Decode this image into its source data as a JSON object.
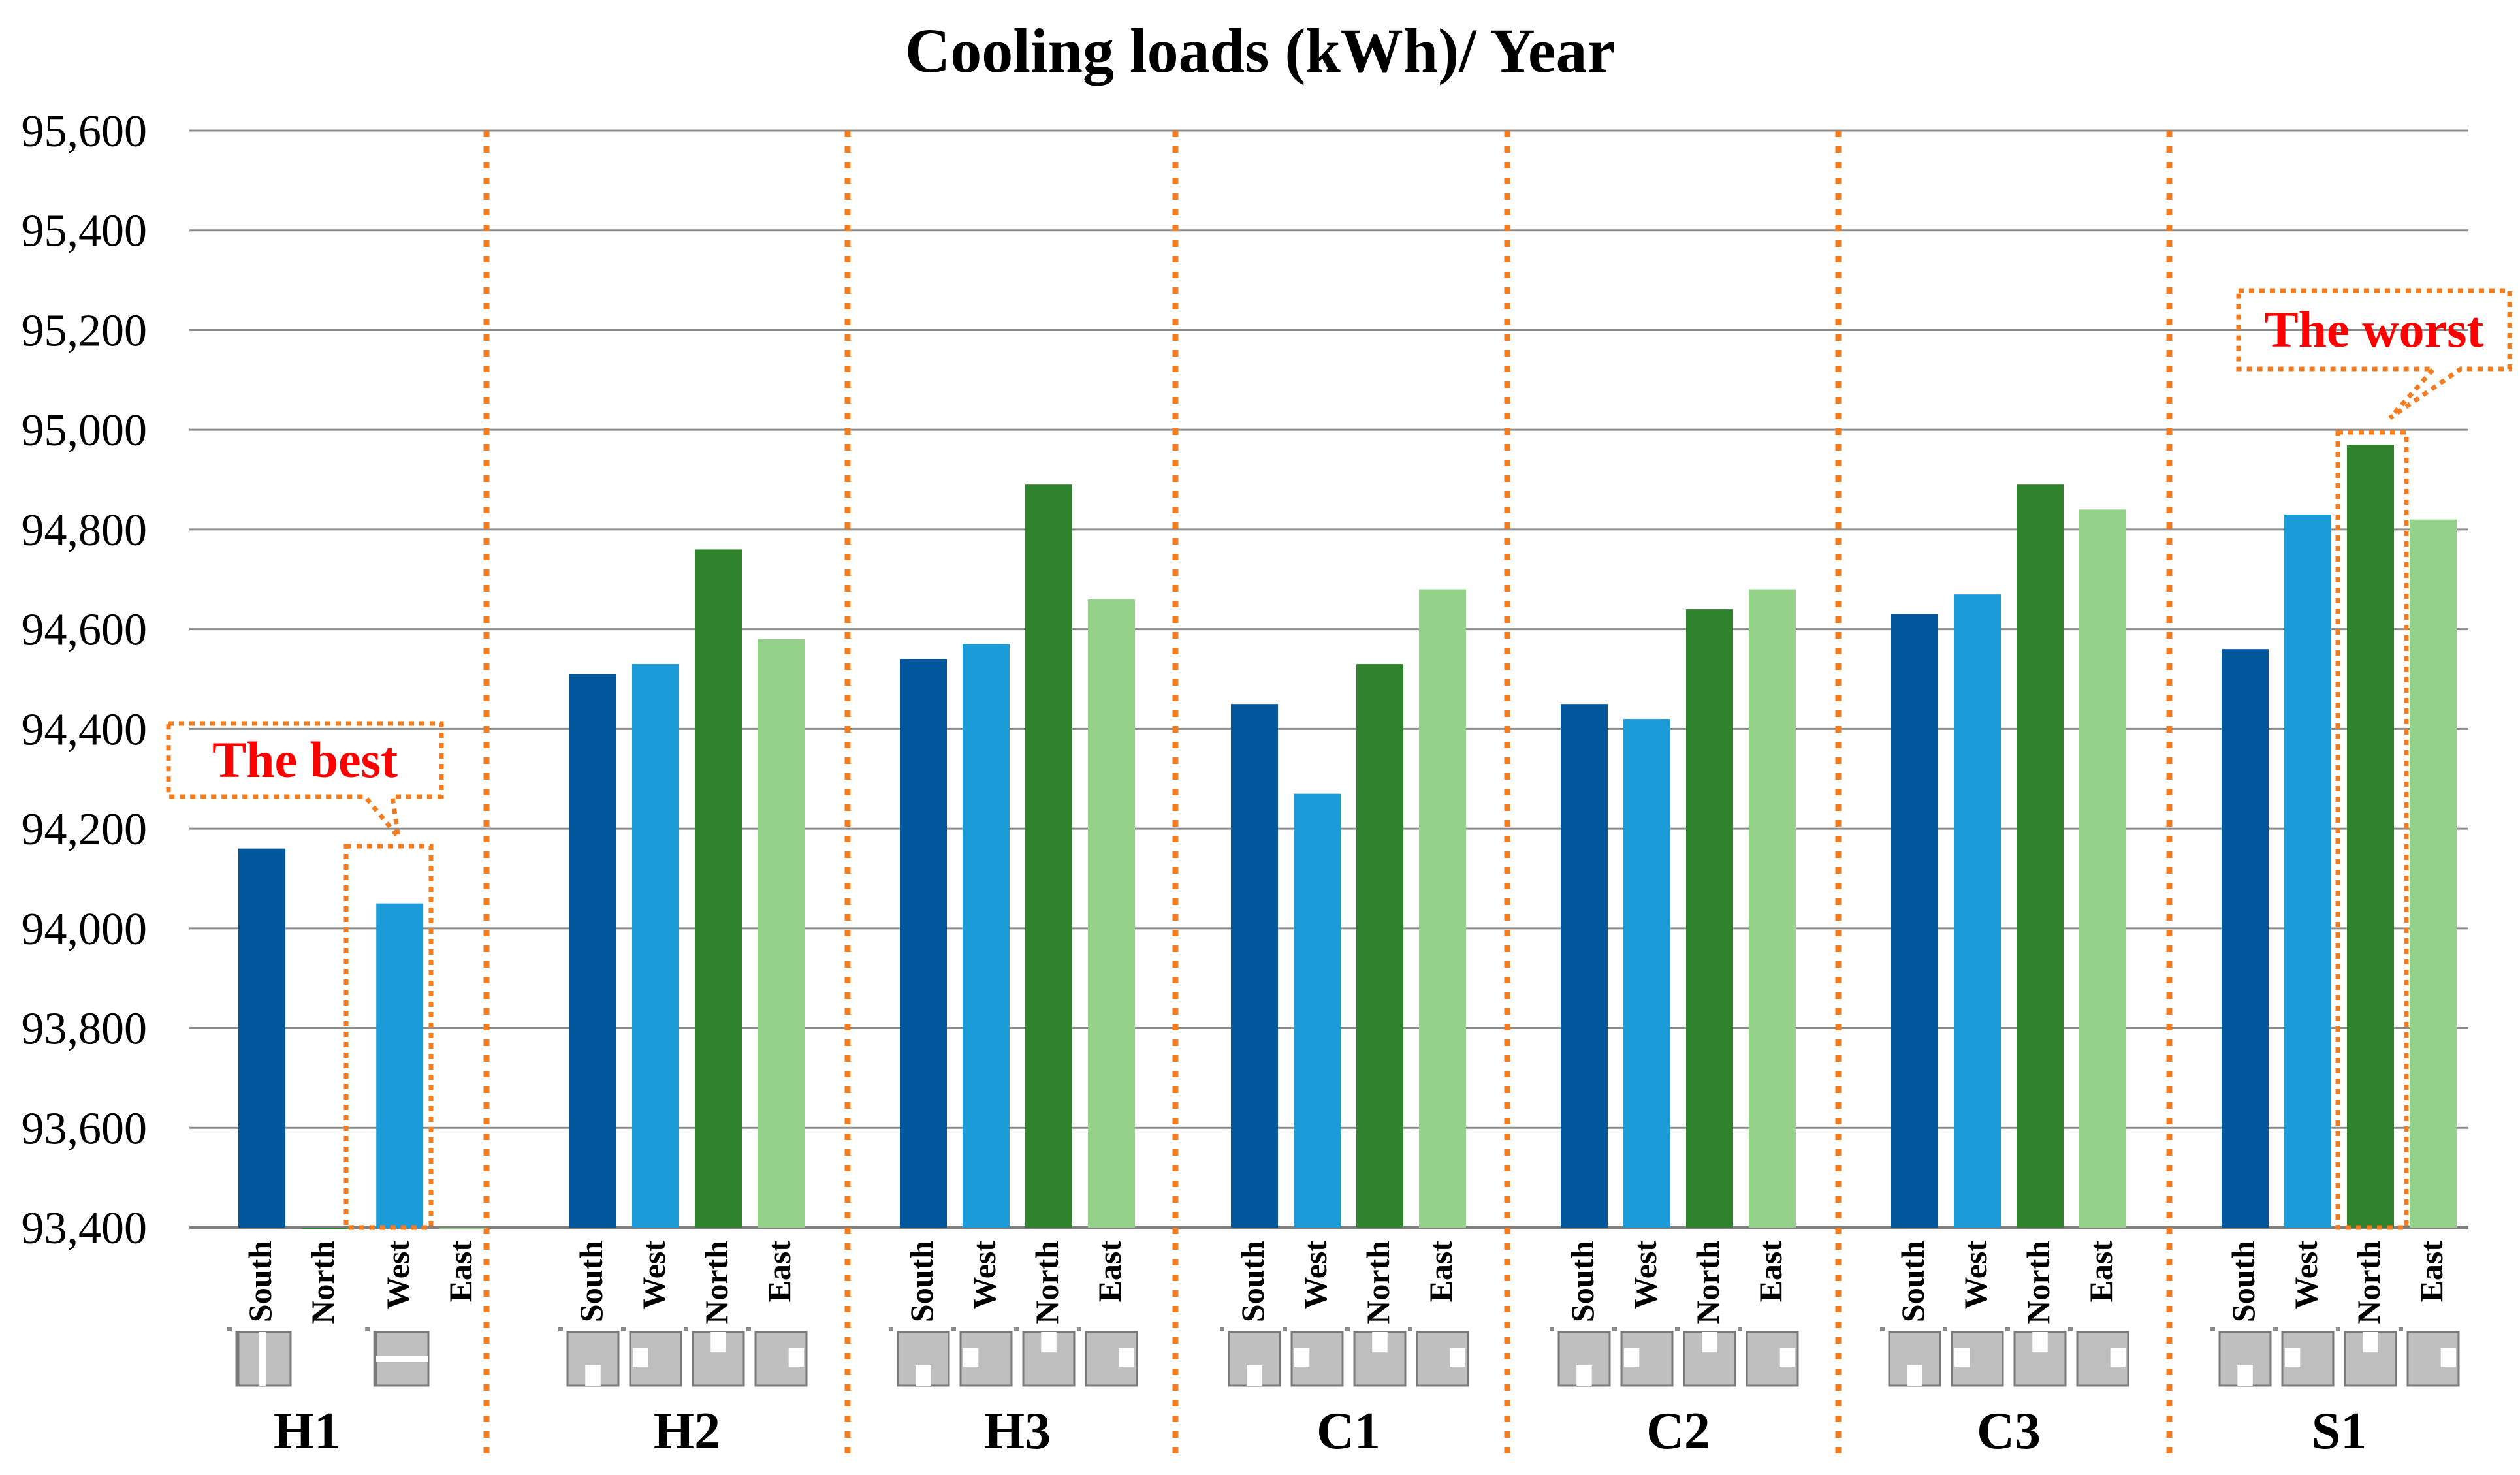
{
  "chart_data": {
    "type": "bar",
    "title": "Cooling loads (kWh)/ Year",
    "xlabel": "",
    "ylabel": "",
    "ylim": [
      93400,
      95600
    ],
    "yticks": [
      "93,400",
      "93,600",
      "93,800",
      "94,000",
      "94,200",
      "94,400",
      "94,600",
      "94,800",
      "95,000",
      "95,200",
      "95,400",
      "95,600"
    ],
    "ytick_values": [
      93400,
      93600,
      93800,
      94000,
      94200,
      94400,
      94600,
      94800,
      95000,
      95200,
      95400,
      95600
    ],
    "grid": true,
    "colors": {
      "South": "#02569b",
      "West": "#1b9bd7",
      "North": "#2e832c",
      "East": "#94d28a",
      "separator": "#f47c20",
      "annotation": "#ff0000"
    },
    "groups": [
      {
        "name": "H1",
        "bars": [
          {
            "orientation": "South",
            "value": 94160
          },
          {
            "orientation": "North",
            "value": 93400
          },
          {
            "orientation": "West",
            "value": 94050
          },
          {
            "orientation": "East",
            "value": 93400
          }
        ]
      },
      {
        "name": "H2",
        "bars": [
          {
            "orientation": "South",
            "value": 94510
          },
          {
            "orientation": "West",
            "value": 94530
          },
          {
            "orientation": "North",
            "value": 94760
          },
          {
            "orientation": "East",
            "value": 94580
          }
        ]
      },
      {
        "name": "H3",
        "bars": [
          {
            "orientation": "South",
            "value": 94540
          },
          {
            "orientation": "West",
            "value": 94570
          },
          {
            "orientation": "North",
            "value": 94890
          },
          {
            "orientation": "East",
            "value": 94660
          }
        ]
      },
      {
        "name": "C1",
        "bars": [
          {
            "orientation": "South",
            "value": 94450
          },
          {
            "orientation": "West",
            "value": 94270
          },
          {
            "orientation": "North",
            "value": 94530
          },
          {
            "orientation": "East",
            "value": 94680
          }
        ]
      },
      {
        "name": "C2",
        "bars": [
          {
            "orientation": "South",
            "value": 94450
          },
          {
            "orientation": "West",
            "value": 94420
          },
          {
            "orientation": "North",
            "value": 94640
          },
          {
            "orientation": "East",
            "value": 94680
          }
        ]
      },
      {
        "name": "C3",
        "bars": [
          {
            "orientation": "South",
            "value": 94630
          },
          {
            "orientation": "West",
            "value": 94670
          },
          {
            "orientation": "North",
            "value": 94890
          },
          {
            "orientation": "East",
            "value": 94840
          }
        ]
      },
      {
        "name": "S1",
        "bars": [
          {
            "orientation": "South",
            "value": 94560
          },
          {
            "orientation": "West",
            "value": 94830
          },
          {
            "orientation": "North",
            "value": 94970
          },
          {
            "orientation": "East",
            "value": 94820
          }
        ]
      }
    ],
    "annotations": [
      {
        "text": "The best",
        "group": "H1",
        "orientation": "West"
      },
      {
        "text": "The worst",
        "group": "S1",
        "orientation": "North"
      }
    ]
  }
}
